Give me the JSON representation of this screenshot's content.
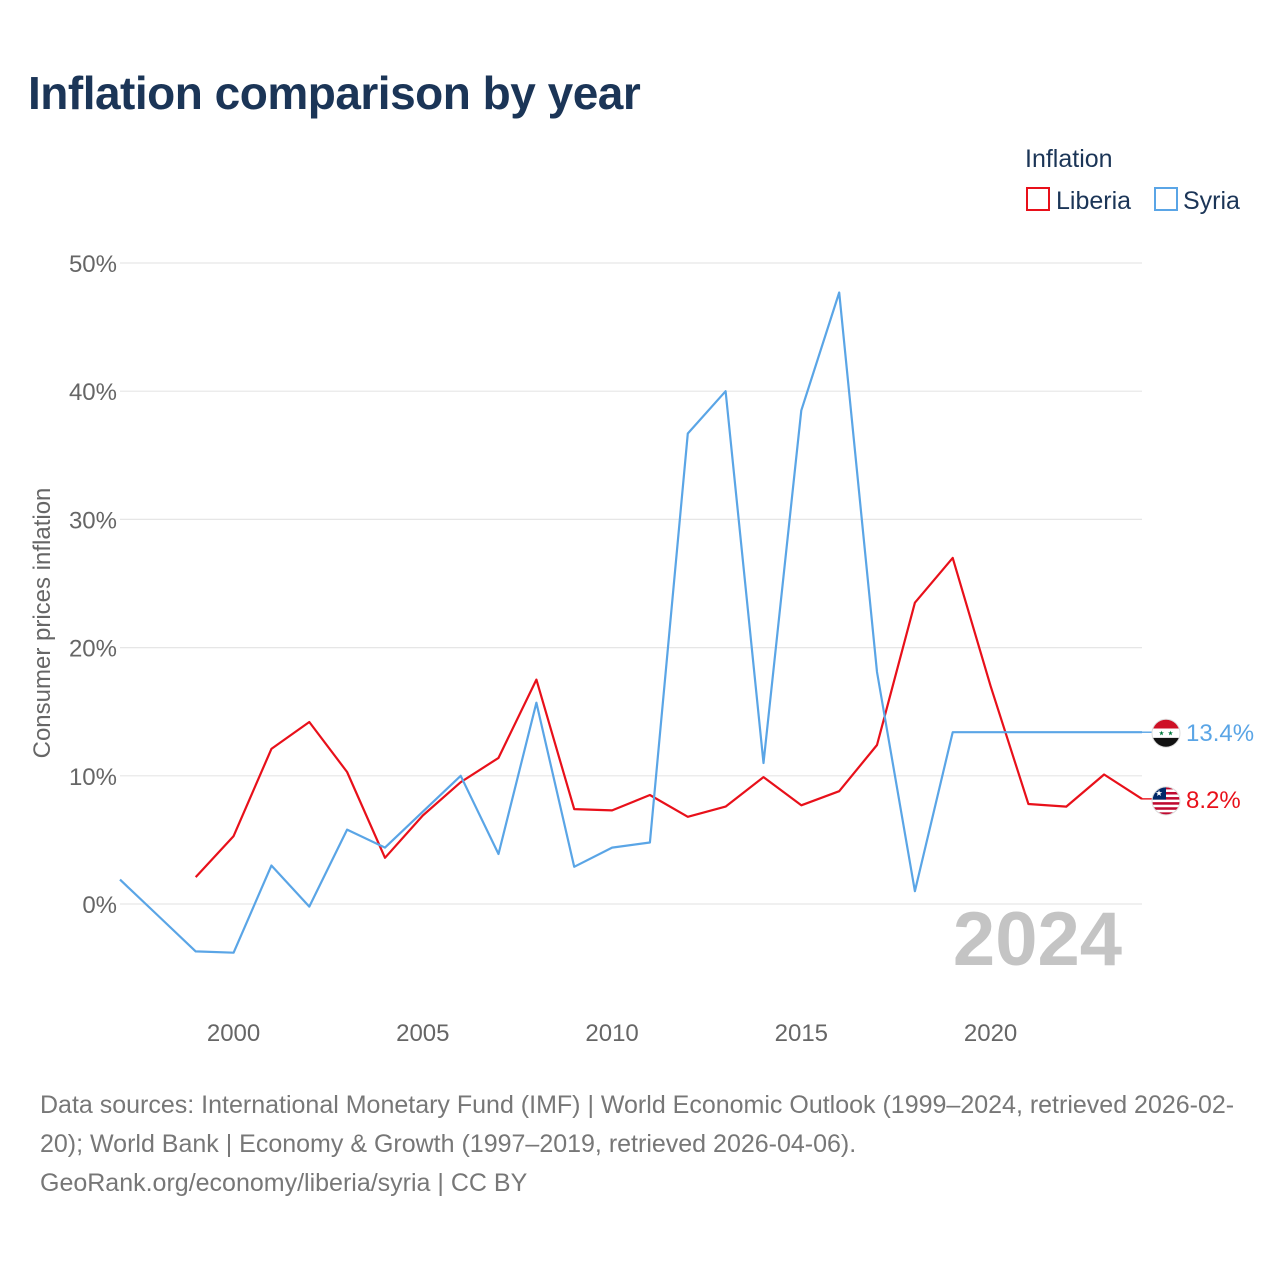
{
  "title": "Inflation comparison by year",
  "source_text": "Data sources: International Monetary Fund (IMF) | World Economic Outlook (1999–2024, retrieved 2026-02-20); World Bank | Economy & Growth (1997–2019, retrieved 2026-04-06). GeoRank.org/economy/liberia/syria | CC BY",
  "chart_data": {
    "type": "line",
    "title": "Inflation comparison by year",
    "xlabel": "",
    "ylabel": "Consumer prices inflation",
    "xlim": [
      1997,
      2024
    ],
    "ylim": [
      -7,
      50
    ],
    "y_ticks": [
      0,
      10,
      20,
      30,
      40,
      50
    ],
    "y_tick_labels": [
      "0%",
      "10%",
      "20%",
      "30%",
      "40%",
      "50%"
    ],
    "x_ticks": [
      2000,
      2005,
      2010,
      2015,
      2020
    ],
    "x_tick_labels": [
      "2000",
      "2005",
      "2010",
      "2015",
      "2020"
    ],
    "legend_title": "Inflation",
    "legend_position": "top-right",
    "year_watermark": "2024",
    "series": [
      {
        "name": "Liberia",
        "color": "#e8101a",
        "end_label": "8.2%",
        "flag": "liberia-flag",
        "x": [
          1999,
          2000,
          2001,
          2002,
          2003,
          2004,
          2005,
          2006,
          2007,
          2008,
          2009,
          2010,
          2011,
          2012,
          2013,
          2014,
          2015,
          2016,
          2017,
          2018,
          2019,
          2020,
          2021,
          2022,
          2023,
          2024
        ],
        "values": [
          2.1,
          5.3,
          12.1,
          14.2,
          10.3,
          3.6,
          6.9,
          9.5,
          11.4,
          17.5,
          7.4,
          7.3,
          8.5,
          6.8,
          7.6,
          9.9,
          7.7,
          8.8,
          12.4,
          23.5,
          27.0,
          17.0,
          7.8,
          7.6,
          10.1,
          8.2
        ]
      },
      {
        "name": "Syria",
        "color": "#5aa5e6",
        "end_label": "13.4%",
        "flag": "syria-flag",
        "x": [
          1997,
          1998,
          1999,
          2000,
          2001,
          2002,
          2003,
          2004,
          2005,
          2006,
          2007,
          2008,
          2009,
          2010,
          2011,
          2012,
          2013,
          2014,
          2015,
          2016,
          2017,
          2018,
          2019,
          2020,
          2021,
          2022,
          2023,
          2024
        ],
        "values": [
          1.9,
          -0.9,
          -3.7,
          -3.8,
          3.0,
          -0.2,
          5.8,
          4.4,
          7.2,
          10.0,
          3.9,
          15.7,
          2.9,
          4.4,
          4.8,
          36.7,
          40.0,
          11.0,
          38.5,
          47.7,
          18.1,
          1.0,
          13.4,
          13.4,
          13.4,
          13.4,
          13.4,
          13.4
        ]
      }
    ]
  }
}
